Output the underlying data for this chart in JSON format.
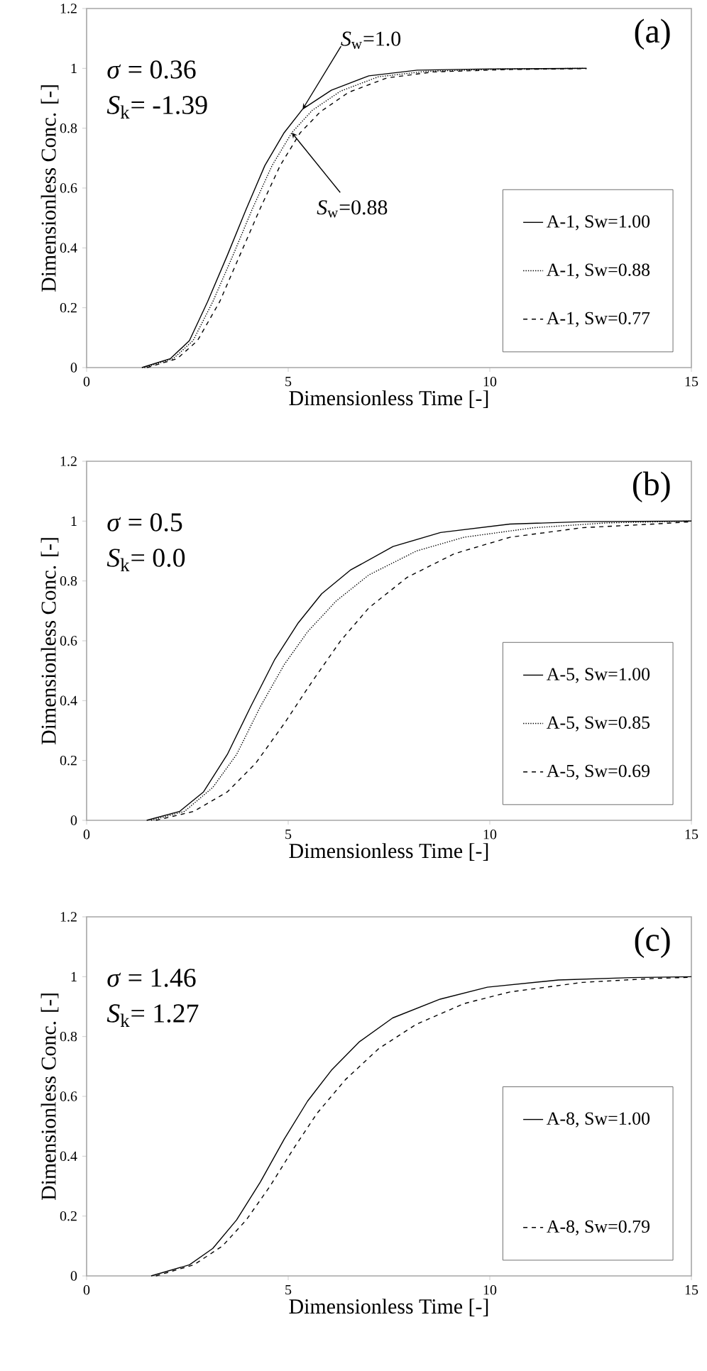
{
  "chart_data": [
    {
      "type": "line",
      "title": "(a)",
      "xlabel": "Dimensionless Time [-]",
      "ylabel": "Dimensionless Conc. [-]",
      "xlim": [
        0,
        15
      ],
      "ylim": [
        0,
        1.2
      ],
      "xticks": [
        0,
        5,
        10,
        15
      ],
      "yticks": [
        0,
        0.2,
        0.4,
        0.6,
        0.8,
        1,
        1.2
      ],
      "legend": "bottom right",
      "annotations": [
        "*σ* = 0.36",
        "*S*$_{k}$= -1.39",
        {
          "text": "*S*$_{w}$=1.0",
          "x": 5.36,
          "y": 0.864
        },
        {
          "text": "*S*$_{w}$=0.88",
          "x": 5.09,
          "y": 0.785
        }
      ],
      "series": [
        {
          "name": "A-1, Sw=1.00",
          "color": "#000000",
          "line_style": "solid",
          "x": [
            1.37,
            2.08,
            2.55,
            3.0,
            3.49,
            3.96,
            4.42,
            4.9,
            5.36,
            6.07,
            7.0,
            8.2,
            9.94,
            12.4
          ],
          "values": [
            0,
            0.03,
            0.09,
            0.22,
            0.375,
            0.53,
            0.675,
            0.785,
            0.864,
            0.927,
            0.975,
            0.994,
            0.998,
            1.0
          ]
        },
        {
          "name": "A-1, Sw=0.88",
          "color": "#000000",
          "line_style": "dotted",
          "x": [
            1.43,
            2.15,
            2.64,
            3.13,
            3.63,
            4.11,
            4.6,
            5.09,
            5.6,
            6.3,
            7.24,
            8.42,
            10.18,
            12.3
          ],
          "values": [
            0,
            0.03,
            0.09,
            0.22,
            0.375,
            0.53,
            0.675,
            0.785,
            0.86,
            0.924,
            0.972,
            0.99,
            0.997,
            1.0
          ]
        },
        {
          "name": "A-1, Sw=0.77",
          "color": "#000000",
          "line_style": "dashed",
          "x": [
            1.5,
            2.25,
            2.75,
            3.3,
            3.8,
            4.3,
            4.8,
            5.3,
            5.8,
            6.5,
            7.45,
            8.6,
            10.4,
            12.4
          ],
          "values": [
            0,
            0.03,
            0.09,
            0.22,
            0.375,
            0.53,
            0.675,
            0.785,
            0.855,
            0.92,
            0.968,
            0.988,
            0.996,
            0.999
          ]
        }
      ]
    },
    {
      "type": "line",
      "title": "(b)",
      "xlabel": "Dimensionless Time [-]",
      "ylabel": "Dimensionless Conc. [-]",
      "xlim": [
        0,
        15
      ],
      "ylim": [
        0,
        1.2
      ],
      "xticks": [
        0,
        5,
        10,
        15
      ],
      "yticks": [
        0,
        0.2,
        0.4,
        0.6,
        0.8,
        1,
        1.2
      ],
      "legend": "bottom right",
      "annotations": [
        "*σ* = 0.5",
        "*S*$_{k}$= 0.0"
      ],
      "series": [
        {
          "name": "A-5, Sw=1.00",
          "color": "#000000",
          "line_style": "solid",
          "x": [
            1.49,
            2.31,
            2.9,
            3.49,
            4.07,
            4.66,
            5.25,
            5.83,
            6.54,
            7.6,
            8.78,
            10.5,
            12.3,
            15
          ],
          "values": [
            0,
            0.03,
            0.095,
            0.22,
            0.38,
            0.536,
            0.66,
            0.757,
            0.836,
            0.915,
            0.962,
            0.99,
            0.998,
            1.0
          ]
        },
        {
          "name": "A-5, Sw=0.85",
          "color": "#000000",
          "line_style": "dotted",
          "x": [
            1.6,
            2.43,
            3.13,
            3.72,
            4.31,
            4.9,
            5.48,
            6.19,
            7.0,
            8.18,
            9.36,
            11.1,
            12.9,
            15
          ],
          "values": [
            0,
            0.03,
            0.11,
            0.22,
            0.38,
            0.52,
            0.63,
            0.733,
            0.82,
            0.9,
            0.946,
            0.978,
            0.994,
            1.0
          ]
        },
        {
          "name": "A-5, Sw=0.69",
          "color": "#000000",
          "line_style": "dashed",
          "x": [
            1.72,
            2.66,
            3.49,
            4.19,
            4.9,
            5.6,
            6.3,
            7.0,
            7.95,
            9.12,
            10.5,
            12.3,
            14.05,
            15
          ],
          "values": [
            0,
            0.03,
            0.095,
            0.19,
            0.323,
            0.465,
            0.6,
            0.71,
            0.812,
            0.891,
            0.946,
            0.978,
            0.99,
            0.998
          ]
        }
      ]
    },
    {
      "type": "line",
      "title": "(c)",
      "xlabel": "Dimensionless Time [-]",
      "ylabel": "Dimensionless Conc. [-]",
      "xlim": [
        0,
        15
      ],
      "ylim": [
        0,
        1.2
      ],
      "xticks": [
        0,
        5,
        10,
        15
      ],
      "yticks": [
        0,
        0.2,
        0.4,
        0.6,
        0.8,
        1,
        1.2
      ],
      "legend": "bottom right",
      "annotations": [
        "*σ* = 1.46",
        "*S*$_{k}$= 1.27"
      ],
      "series": [
        {
          "name": "A-8, Sw=1.00",
          "color": "#000000",
          "line_style": "solid",
          "x": [
            1.6,
            2.55,
            3.13,
            3.72,
            4.31,
            4.9,
            5.48,
            6.07,
            6.77,
            7.59,
            8.77,
            9.94,
            11.7,
            13.5,
            15
          ],
          "values": [
            0,
            0.037,
            0.092,
            0.187,
            0.314,
            0.457,
            0.584,
            0.687,
            0.783,
            0.862,
            0.925,
            0.965,
            0.989,
            0.997,
            1.0
          ]
        },
        {
          "name": "A-8, Sw=0.79",
          "color": "#000000",
          "line_style": "dashed",
          "x": [
            1.72,
            2.66,
            3.37,
            3.96,
            4.54,
            5.13,
            5.72,
            6.42,
            7.24,
            8.18,
            9.36,
            10.5,
            12.3,
            14.05,
            15
          ],
          "values": [
            0,
            0.037,
            0.1,
            0.187,
            0.298,
            0.425,
            0.544,
            0.656,
            0.759,
            0.841,
            0.91,
            0.949,
            0.981,
            0.994,
            0.998
          ]
        }
      ]
    }
  ]
}
